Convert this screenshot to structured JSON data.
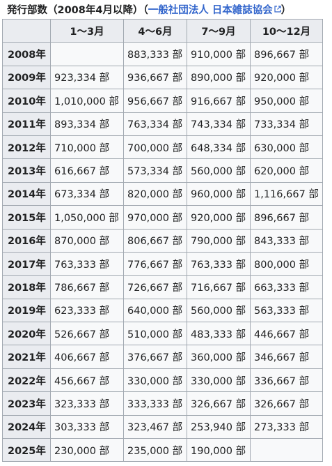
{
  "caption": {
    "text": "発行部数（2008年4月以降）（",
    "source_link": "一般社団法人 日本雑誌協会",
    "close": "）",
    "icon": "external-link-icon"
  },
  "colors": {
    "header_bg": "#eaecf0",
    "cell_bg": "#f8f9fa",
    "border": "#a2a9b1",
    "link": "#3366cc"
  },
  "table": {
    "headers": [
      "",
      "1〜3月",
      "4〜6月",
      "7〜9月",
      "10〜12月"
    ],
    "rows": [
      {
        "year": "2008年",
        "cells": [
          "",
          "883,333 部",
          "910,000 部",
          "896,667 部"
        ]
      },
      {
        "year": "2009年",
        "cells": [
          "923,334 部",
          "936,667 部",
          "890,000 部",
          "920,000 部"
        ]
      },
      {
        "year": "2010年",
        "cells": [
          "1,010,000 部",
          "956,667 部",
          "916,667 部",
          "950,000 部"
        ]
      },
      {
        "year": "2011年",
        "cells": [
          "893,334 部",
          "763,334 部",
          "743,334 部",
          "733,334 部"
        ]
      },
      {
        "year": "2012年",
        "cells": [
          "710,000 部",
          "700,000 部",
          "648,334 部",
          "630,000 部"
        ]
      },
      {
        "year": "2013年",
        "cells": [
          "616,667 部",
          "573,334 部",
          "560,000 部",
          "620,000 部"
        ]
      },
      {
        "year": "2014年",
        "cells": [
          "673,334 部",
          "820,000 部",
          "960,000 部",
          "1,116,667 部"
        ]
      },
      {
        "year": "2015年",
        "cells": [
          "1,050,000 部",
          "970,000 部",
          "920,000 部",
          "896,667 部"
        ]
      },
      {
        "year": "2016年",
        "cells": [
          "870,000 部",
          "806,667 部",
          "790,000 部",
          "843,333 部"
        ]
      },
      {
        "year": "2017年",
        "cells": [
          "763,333 部",
          "776,667 部",
          "763,333 部",
          "800,000 部"
        ]
      },
      {
        "year": "2018年",
        "cells": [
          "786,667 部",
          "726,667 部",
          "716,667 部",
          "663,333 部"
        ]
      },
      {
        "year": "2019年",
        "cells": [
          "623,333 部",
          "640,000 部",
          "560,000 部",
          "563,333 部"
        ]
      },
      {
        "year": "2020年",
        "cells": [
          "526,667 部",
          "510,000 部",
          "483,333 部",
          "446,667 部"
        ]
      },
      {
        "year": "2021年",
        "cells": [
          "406,667 部",
          "376,667 部",
          "360,000 部",
          "346,667 部"
        ]
      },
      {
        "year": "2022年",
        "cells": [
          "456,667 部",
          "330,000 部",
          "330,000 部",
          "336,667 部"
        ]
      },
      {
        "year": "2023年",
        "cells": [
          "323,333 部",
          "333,333 部",
          "326,667 部",
          "326,667 部"
        ]
      },
      {
        "year": "2024年",
        "cells": [
          "303,333 部",
          "323,467 部",
          "253,940 部",
          "273,333 部"
        ]
      },
      {
        "year": "2025年",
        "cells": [
          "230,000 部",
          "235,000 部",
          "190,000 部",
          ""
        ]
      }
    ]
  }
}
